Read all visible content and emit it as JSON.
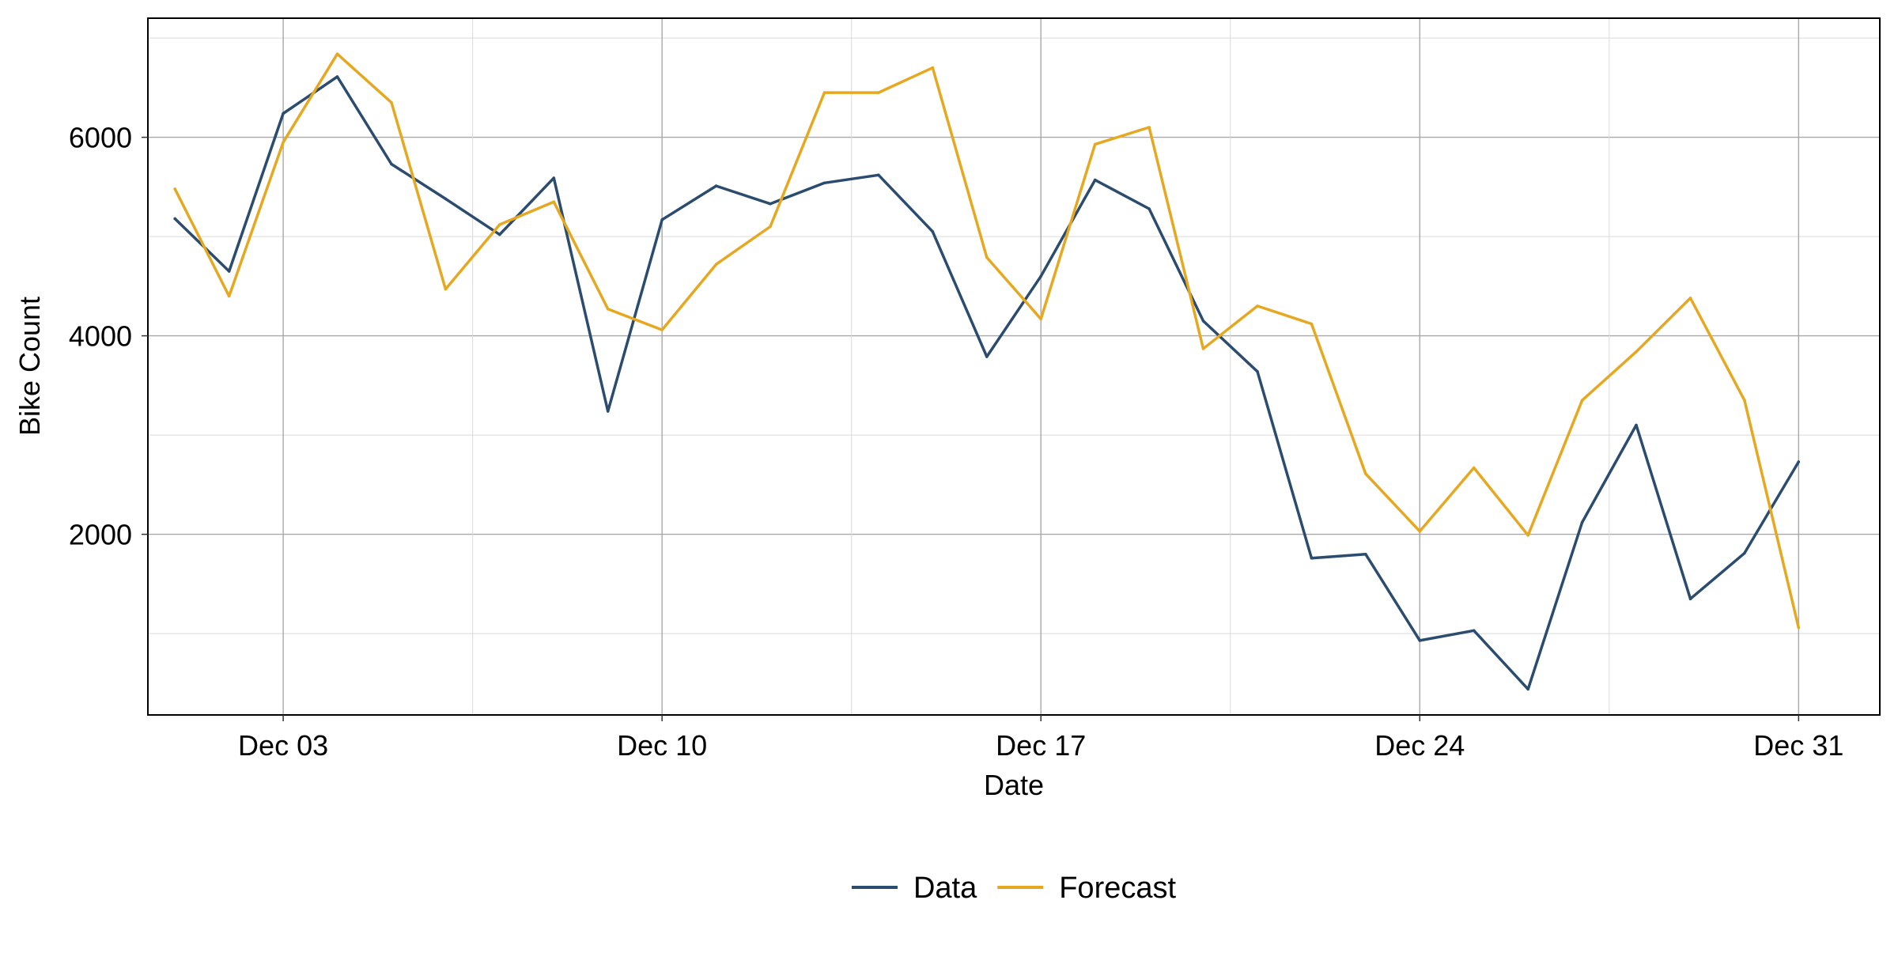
{
  "chart_data": {
    "type": "line",
    "xlabel": "Date",
    "ylabel": "Bike Count",
    "x_ticks": [
      "Dec 03",
      "Dec 10",
      "Dec 17",
      "Dec 24",
      "Dec 31"
    ],
    "y_ticks": [
      2000,
      4000,
      6000
    ],
    "x_range": [
      "2022-11-30T12:00",
      "2023-01-01T12:00"
    ],
    "ylim": [
      180,
      7200
    ],
    "grid": true,
    "legend_position": "bottom",
    "x": [
      "2022-12-01",
      "2022-12-02",
      "2022-12-03",
      "2022-12-04",
      "2022-12-05",
      "2022-12-06",
      "2022-12-07",
      "2022-12-08",
      "2022-12-09",
      "2022-12-10",
      "2022-12-11",
      "2022-12-12",
      "2022-12-13",
      "2022-12-14",
      "2022-12-15",
      "2022-12-16",
      "2022-12-17",
      "2022-12-18",
      "2022-12-19",
      "2022-12-20",
      "2022-12-21",
      "2022-12-22",
      "2022-12-23",
      "2022-12-24",
      "2022-12-25",
      "2022-12-26",
      "2022-12-27",
      "2022-12-28",
      "2022-12-29",
      "2022-12-30",
      "2022-12-31"
    ],
    "series": [
      {
        "name": "Data",
        "color": "#2b4c6f",
        "values": [
          5180,
          4650,
          6240,
          6610,
          5730,
          5380,
          5020,
          5590,
          3240,
          5170,
          5510,
          5330,
          5540,
          5620,
          5050,
          3790,
          4600,
          5570,
          5280,
          4150,
          3640,
          1760,
          1800,
          930,
          1030,
          440,
          2120,
          3100,
          1350,
          1810,
          2730
        ]
      },
      {
        "name": "Forecast",
        "color": "#e6a820",
        "values": [
          5480,
          4400,
          5950,
          6840,
          6350,
          4470,
          5120,
          5350,
          4270,
          4060,
          4720,
          5100,
          6450,
          6450,
          6700,
          4790,
          4170,
          5930,
          6100,
          3870,
          4300,
          4120,
          2610,
          2030,
          2670,
          1990,
          3350,
          3840,
          4380,
          3350,
          1060
        ]
      }
    ]
  }
}
